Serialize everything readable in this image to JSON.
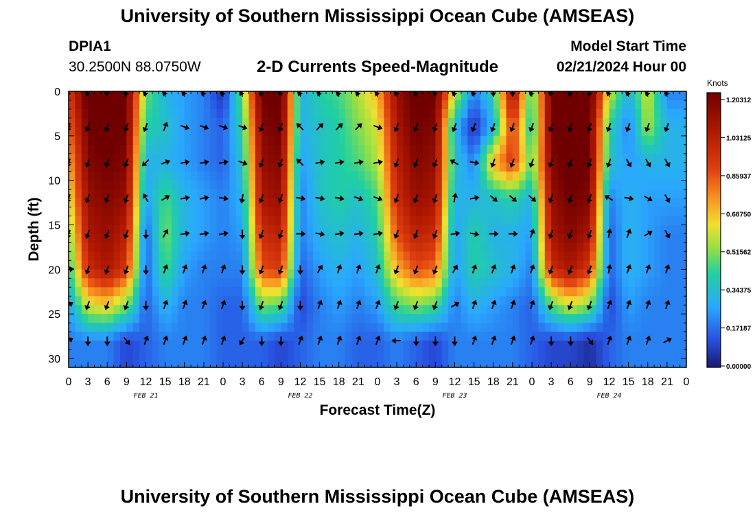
{
  "header": {
    "title": "University of Southern Mississippi Ocean Cube (AMSEAS)",
    "station_id": "DPIA1",
    "station_coords": "30.2500N  88.0750W",
    "subtitle": "2-D Currents Speed-Magnitude",
    "model_start_label": "Model Start Time",
    "model_start_value": "02/21/2024 Hour 00"
  },
  "footer": {
    "title_repeat": "University of Southern Mississippi Ocean Cube (AMSEAS)"
  },
  "chart_data": {
    "type": "heatmap",
    "title": "2-D Currents Speed-Magnitude",
    "xlabel": "Forecast Time(Z)",
    "ylabel": "Depth (ft)",
    "x_range_hours": [
      0,
      96
    ],
    "y_range_ft": [
      0,
      31
    ],
    "y_inverted": true,
    "x_ticks": [
      "0",
      "3",
      "6",
      "9",
      "12",
      "15",
      "18",
      "21",
      "0",
      "3",
      "6",
      "9",
      "12",
      "15",
      "18",
      "21",
      "0",
      "3",
      "6",
      "9",
      "12",
      "15",
      "18",
      "21",
      "0",
      "3",
      "6",
      "9",
      "12",
      "15",
      "18",
      "21",
      "0"
    ],
    "y_ticks": [
      "0",
      "5",
      "10",
      "15",
      "20",
      "25",
      "30"
    ],
    "date_labels": [
      {
        "label": "FEB 21",
        "hour": 12
      },
      {
        "label": "FEB 22",
        "hour": 36
      },
      {
        "label": "FEB 23",
        "hour": 60
      },
      {
        "label": "FEB 24",
        "hour": 84
      }
    ],
    "colorbar": {
      "unit": "Knots",
      "min": 0.0,
      "max": 1.2031,
      "tick_labels": [
        "1.20312",
        "1.03125",
        "0.85937",
        "0.68750",
        "0.51562",
        "0.34375",
        "0.17187",
        "0.00000"
      ]
    },
    "arrow_depths_ft": [
      0,
      4,
      8,
      12,
      16,
      20,
      24,
      28
    ],
    "arrow_hours": [
      0,
      3,
      6,
      9,
      12,
      15,
      18,
      21,
      24,
      27,
      30,
      33,
      36,
      39,
      42,
      45,
      48,
      51,
      54,
      57,
      60,
      63,
      66,
      69,
      72,
      75,
      78,
      81,
      84,
      87,
      90,
      93
    ],
    "speed_grid_knots": [
      [
        0.9,
        1.25,
        1.25,
        1.2,
        0.5,
        0.3,
        0.25,
        0.2,
        0.05,
        0.5,
        1.2,
        1.25,
        0.3,
        0.4,
        0.45,
        0.55,
        0.7,
        1.1,
        1.25,
        1.2,
        0.6,
        0.2,
        0.4,
        1.1,
        0.4,
        1.2,
        1.3,
        1.25,
        0.6,
        0.3,
        0.6,
        0.2
      ],
      [
        0.8,
        1.2,
        1.25,
        1.2,
        0.4,
        0.35,
        0.25,
        0.2,
        0.15,
        0.4,
        1.15,
        1.2,
        0.3,
        0.35,
        0.4,
        0.5,
        0.6,
        1.05,
        1.2,
        1.15,
        0.3,
        0.05,
        0.3,
        0.9,
        0.35,
        1.2,
        1.3,
        1.2,
        0.4,
        0.2,
        0.55,
        0.3
      ],
      [
        0.7,
        1.15,
        1.2,
        1.15,
        0.3,
        0.3,
        0.25,
        0.2,
        0.15,
        0.35,
        1.1,
        1.15,
        0.25,
        0.35,
        0.4,
        0.45,
        0.55,
        1.0,
        1.15,
        1.1,
        0.35,
        0.2,
        0.7,
        0.9,
        0.45,
        1.15,
        1.25,
        1.2,
        0.35,
        0.25,
        0.3,
        0.3
      ],
      [
        0.6,
        1.1,
        1.15,
        1.1,
        0.25,
        0.45,
        0.3,
        0.25,
        0.2,
        0.3,
        1.05,
        1.1,
        0.2,
        0.35,
        0.4,
        0.35,
        0.45,
        0.95,
        1.1,
        1.05,
        0.3,
        0.3,
        0.35,
        0.4,
        0.3,
        1.1,
        1.2,
        1.15,
        0.2,
        0.3,
        0.25,
        0.25
      ],
      [
        0.5,
        1.05,
        1.1,
        1.0,
        0.15,
        0.5,
        0.3,
        0.25,
        0.2,
        0.25,
        0.95,
        1.0,
        0.2,
        0.3,
        0.35,
        0.3,
        0.4,
        0.85,
        1.0,
        0.95,
        0.25,
        0.4,
        0.3,
        0.3,
        0.25,
        1.05,
        1.15,
        1.05,
        0.15,
        0.3,
        0.25,
        0.2
      ],
      [
        0.4,
        0.95,
        1.05,
        0.9,
        0.15,
        0.45,
        0.25,
        0.2,
        0.2,
        0.2,
        0.85,
        0.9,
        0.15,
        0.25,
        0.3,
        0.25,
        0.35,
        0.7,
        0.85,
        0.8,
        0.25,
        0.4,
        0.35,
        0.3,
        0.2,
        0.95,
        1.05,
        0.9,
        0.15,
        0.3,
        0.25,
        0.2
      ],
      [
        0.25,
        0.6,
        0.65,
        0.5,
        0.15,
        0.3,
        0.2,
        0.2,
        0.15,
        0.15,
        0.5,
        0.45,
        0.1,
        0.2,
        0.25,
        0.2,
        0.25,
        0.45,
        0.5,
        0.45,
        0.2,
        0.3,
        0.25,
        0.2,
        0.15,
        0.45,
        0.6,
        0.5,
        0.1,
        0.25,
        0.2,
        0.2
      ],
      [
        0.2,
        0.2,
        0.2,
        0.1,
        0.15,
        0.2,
        0.2,
        0.2,
        0.15,
        0.15,
        0.15,
        0.1,
        0.15,
        0.2,
        0.2,
        0.15,
        0.15,
        0.2,
        0.15,
        0.1,
        0.2,
        0.2,
        0.2,
        0.2,
        0.15,
        0.1,
        0.1,
        0.05,
        0.15,
        0.2,
        0.2,
        0.2
      ]
    ],
    "direction_grid_deg": [
      [
        200,
        200,
        200,
        200,
        200,
        200,
        200,
        200,
        200,
        210,
        200,
        200,
        200,
        200,
        200,
        200,
        200,
        200,
        200,
        200,
        200,
        200,
        180,
        180,
        200,
        200,
        200,
        200,
        200,
        200,
        200,
        200
      ],
      [
        200,
        200,
        200,
        200,
        200,
        20,
        110,
        110,
        110,
        110,
        200,
        200,
        315,
        45,
        45,
        45,
        110,
        200,
        200,
        200,
        200,
        200,
        200,
        200,
        200,
        200,
        200,
        200,
        200,
        200,
        200,
        200
      ],
      [
        200,
        200,
        200,
        200,
        225,
        70,
        80,
        80,
        80,
        110,
        200,
        200,
        315,
        80,
        80,
        80,
        80,
        200,
        200,
        200,
        300,
        100,
        200,
        200,
        200,
        200,
        200,
        200,
        200,
        150,
        150,
        150
      ],
      [
        200,
        200,
        200,
        200,
        330,
        60,
        80,
        80,
        100,
        190,
        200,
        200,
        100,
        100,
        100,
        110,
        110,
        200,
        200,
        200,
        10,
        80,
        130,
        130,
        130,
        200,
        200,
        200,
        300,
        100,
        120,
        150
      ],
      [
        200,
        200,
        200,
        200,
        180,
        30,
        80,
        80,
        80,
        180,
        200,
        200,
        90,
        100,
        80,
        80,
        80,
        200,
        200,
        200,
        80,
        100,
        90,
        90,
        20,
        200,
        200,
        200,
        10,
        20,
        60,
        150
      ],
      [
        80,
        200,
        200,
        200,
        180,
        20,
        20,
        20,
        20,
        180,
        200,
        200,
        180,
        30,
        20,
        20,
        20,
        200,
        200,
        200,
        30,
        20,
        20,
        20,
        20,
        200,
        200,
        200,
        10,
        20,
        20,
        20
      ],
      [
        60,
        200,
        200,
        200,
        180,
        20,
        20,
        20,
        20,
        180,
        200,
        200,
        180,
        20,
        20,
        20,
        20,
        200,
        200,
        200,
        60,
        20,
        20,
        20,
        20,
        200,
        200,
        200,
        20,
        20,
        20,
        20
      ],
      [
        60,
        180,
        180,
        140,
        20,
        20,
        20,
        20,
        20,
        210,
        180,
        180,
        20,
        20,
        20,
        20,
        20,
        270,
        180,
        180,
        180,
        20,
        20,
        20,
        20,
        180,
        180,
        140,
        20,
        20,
        20,
        60
      ]
    ]
  }
}
